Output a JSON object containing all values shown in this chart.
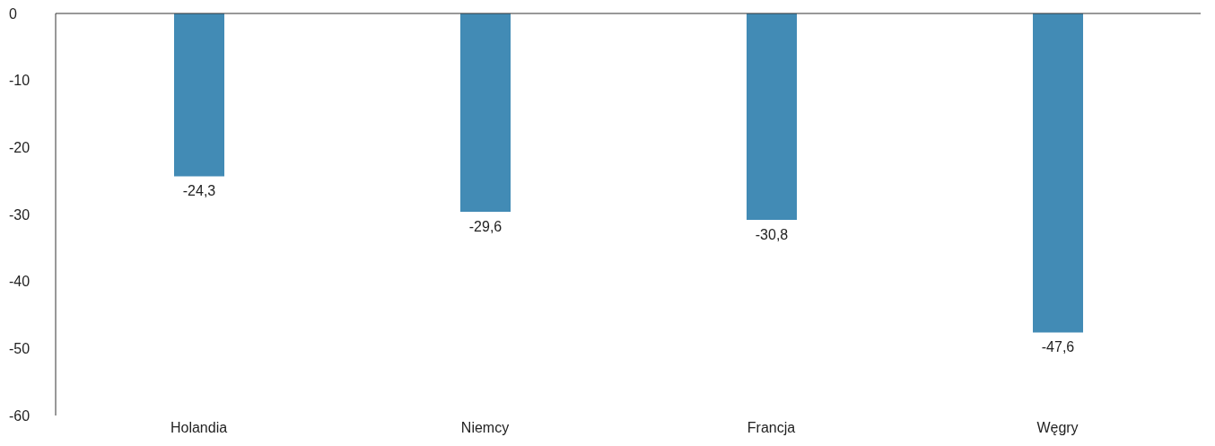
{
  "chart_data": {
    "type": "bar",
    "categories": [
      "Holandia",
      "Niemcy",
      "Francja",
      "Węgry"
    ],
    "values": [
      -24.3,
      -29.6,
      -30.8,
      -47.6
    ],
    "color": "#428bb5",
    "value_labels": [
      "-24,3",
      "-29,6",
      "-30,8",
      "-47,6"
    ],
    "ylim": [
      -60,
      0
    ],
    "yticks": [
      -60,
      -50,
      -40,
      -30,
      -20,
      -10,
      0
    ],
    "grid": false,
    "legend": false
  }
}
